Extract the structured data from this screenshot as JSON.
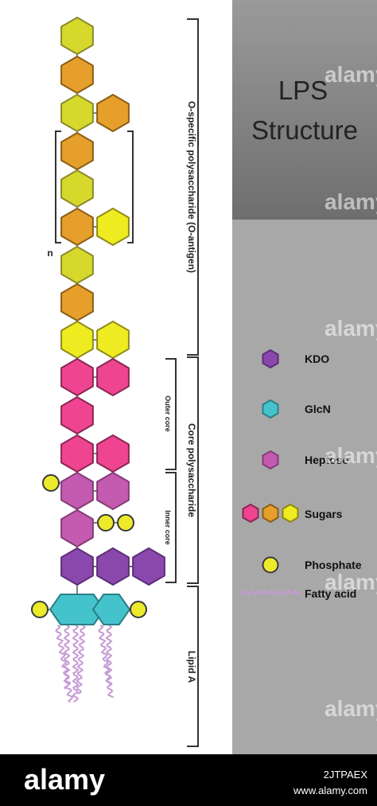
{
  "title": {
    "line1": "LPS",
    "line2": "Structure"
  },
  "brackets": {
    "o_antigen": "O-specific polysaccharide (O-antigen)",
    "core": "Core polysaccharide",
    "outer_core": "Outer core",
    "inner_core": "Inner core",
    "lipid_a": "Lipid A",
    "repeat_n": "n"
  },
  "legend": {
    "kdo": "KDO",
    "glcn": "GlcN",
    "heptose": "Heptose",
    "sugars": "Sugars",
    "phosphate": "Phosphate",
    "fatty_acid": "Fatty acid"
  },
  "colors": {
    "yellow_green": "#d6d82c",
    "yellow": "#eeeb20",
    "orange": "#e59f2a",
    "pink": "#ef4590",
    "heptose": "#c45bb0",
    "kdo": "#8b48ac",
    "glcn": "#45c3cc",
    "phosphate": "#ecea2b",
    "fatty_acid": "#c79ad6",
    "sidebar_top": "#8a8a8a",
    "sidebar_bottom": "#a9a9a9"
  },
  "watermark": {
    "brand": "alamy"
  },
  "footer": {
    "brand": "alamy",
    "image_id": "2JTPAEX",
    "url": "www.alamy.com"
  }
}
